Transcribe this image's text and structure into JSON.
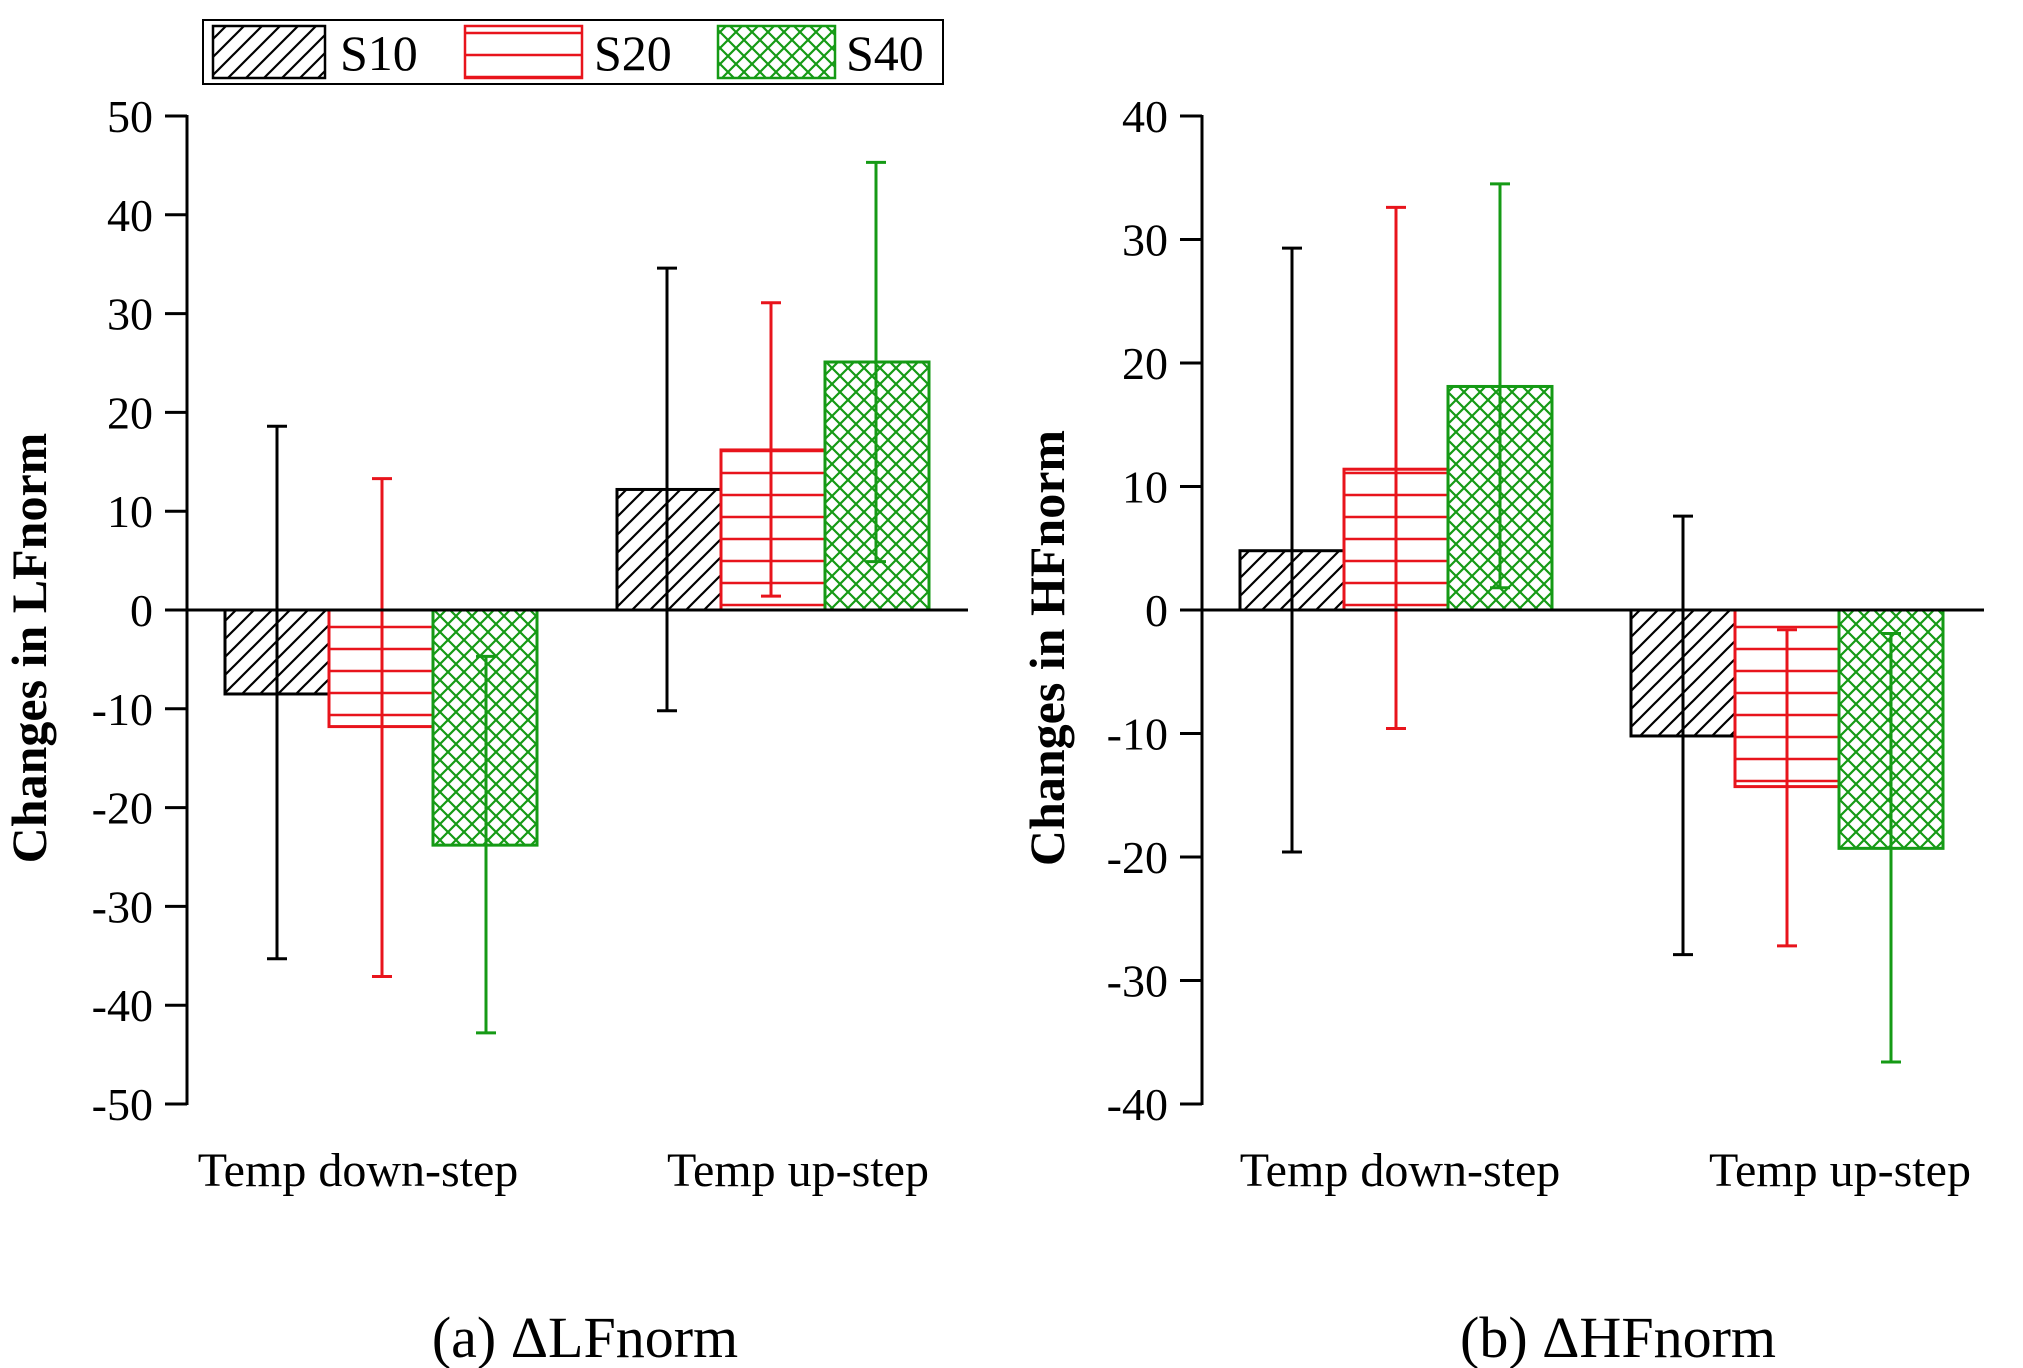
{
  "legend": {
    "items": [
      {
        "label": "S10",
        "color": "#000000",
        "pattern": "diagonal-hatch"
      },
      {
        "label": "S20",
        "color": "#e8141c",
        "pattern": "horizontal-lines"
      },
      {
        "label": "S40",
        "color": "#159a15",
        "pattern": "crosshatch"
      }
    ]
  },
  "captions": {
    "a": "(a) ΔLFnorm",
    "b": "(b) ΔHFnorm"
  },
  "chart_data": [
    {
      "type": "bar",
      "panel": "a",
      "ylabel": "Changes in LFnorm",
      "ylim": [
        -50,
        50
      ],
      "yticks": [
        -50,
        -40,
        -30,
        -20,
        -10,
        0,
        10,
        20,
        30,
        40,
        50
      ],
      "categories": [
        "Temp down-step",
        "Temp up-step"
      ],
      "series": [
        {
          "name": "S10",
          "values": [
            -8.5,
            12.2
          ],
          "error_low": [
            -35.3,
            -10.2
          ],
          "error_high": [
            18.6,
            34.6
          ]
        },
        {
          "name": "S20",
          "values": [
            -11.8,
            16.2
          ],
          "error_low": [
            -37.1,
            1.4
          ],
          "error_high": [
            13.3,
            31.1
          ]
        },
        {
          "name": "S40",
          "values": [
            -23.8,
            25.1
          ],
          "error_low": [
            -42.8,
            4.9
          ],
          "error_high": [
            -4.7,
            45.3
          ]
        }
      ],
      "grid": false
    },
    {
      "type": "bar",
      "panel": "b",
      "ylabel": "Changes in HFnorm",
      "ylim": [
        -40,
        40
      ],
      "yticks": [
        -40,
        -30,
        -20,
        -10,
        0,
        10,
        20,
        30,
        40
      ],
      "categories": [
        "Temp down-step",
        "Temp up-step"
      ],
      "series": [
        {
          "name": "S10",
          "values": [
            4.8,
            -10.2
          ],
          "error_low": [
            -19.6,
            -27.9
          ],
          "error_high": [
            29.3,
            7.6
          ]
        },
        {
          "name": "S20",
          "values": [
            11.4,
            -14.3
          ],
          "error_low": [
            -9.6,
            -27.2
          ],
          "error_high": [
            32.6,
            -1.6
          ]
        },
        {
          "name": "S40",
          "values": [
            18.1,
            -19.3
          ],
          "error_low": [
            1.8,
            -36.6
          ],
          "error_high": [
            34.5,
            -1.9
          ]
        }
      ],
      "grid": false
    }
  ]
}
